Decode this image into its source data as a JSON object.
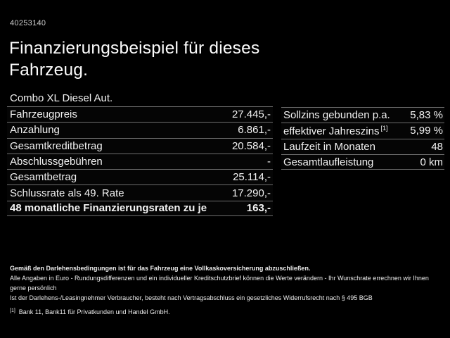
{
  "page": {
    "doc_id": "40253140",
    "title_line1": "Finanzierungsbeispiel für dieses",
    "title_line2": "Fahrzeug.",
    "subtitle": "Combo XL Diesel Aut."
  },
  "finance_table": {
    "rows": [
      {
        "label": "Fahrzeugpreis",
        "value": "27.445,-"
      },
      {
        "label": "Anzahlung",
        "value": "6.861,-"
      },
      {
        "label": "Gesamtkreditbetrag",
        "value": "20.584,-"
      },
      {
        "label": "Abschlussgebühren",
        "value": "-"
      },
      {
        "label": "Gesamtbetrag",
        "value": "25.114,-"
      },
      {
        "label": "Schlussrate als 49. Rate",
        "value": "17.290,-"
      },
      {
        "label": "48 monatliche Finanzierungsraten zu je",
        "value": "163,-"
      }
    ]
  },
  "conditions_table": {
    "rows": [
      {
        "label": "Sollzins gebunden p.a.",
        "sup": "",
        "value": "5,83 %"
      },
      {
        "label": "effektiver Jahreszins",
        "sup": "[1]",
        "value": "5,99 %"
      },
      {
        "label": "Laufzeit in Monaten",
        "sup": "",
        "value": "48"
      },
      {
        "label": "Gesamtlaufleistung",
        "sup": "",
        "value": "0 km"
      }
    ]
  },
  "fineprint": {
    "insurance_note_bold": "Gemäß den Darlehensbedingungen ist für das Fahrzeug eine Vollkaskoversicherung abzuschließen.",
    "disclaimer_line1": "Alle Angaben in Euro - Rundungsdifferenzen und ein individueller Kreditschutzbrief können die Werte verändern - Ihr Wunschrate errechnen wir Ihnen gerne persönlich",
    "disclaimer_line2": "Ist der Darlehens-/Leasingnehmer Verbraucher, besteht nach Vertragsabschluss ein gesetzliches Widerrufsrecht nach § 495 BGB",
    "bank_ref_marker": "[1]",
    "bank_ref": "Bank 11, Bank11 für Privatkunden und Handel GmbH."
  },
  "colors": {
    "background": "#000000",
    "text": "#f2f2f2",
    "separator": "#6d6d6d"
  }
}
